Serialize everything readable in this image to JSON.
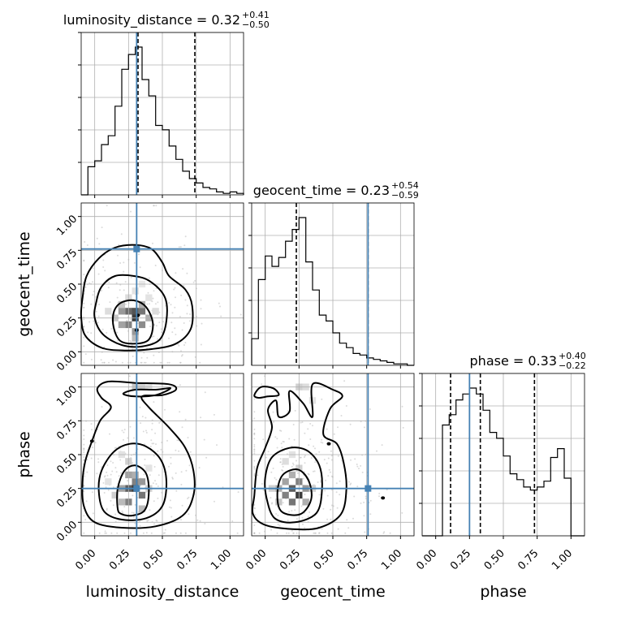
{
  "chart_data": {
    "type": "corner",
    "grid": true,
    "params": [
      "luminosity_distance",
      "geocent_time",
      "phase"
    ],
    "axis_range": [
      -0.1,
      1.1
    ],
    "ticks": [
      0.0,
      0.25,
      0.5,
      0.75,
      1.0
    ],
    "tick_labels": [
      "0.00",
      "0.25",
      "0.50",
      "0.75",
      "1.00"
    ],
    "truths": [
      0.31,
      0.76,
      0.25
    ],
    "truth_color": "#4682b4",
    "titles": [
      {
        "label": "luminosity_distance = 0.32",
        "sup": "+0.41",
        "sub": "−0.50"
      },
      {
        "label": "geocent_time = 0.23",
        "sup": "+0.54",
        "sub": "−0.59"
      },
      {
        "label": "phase = 0.33",
        "sup": "+0.40",
        "sub": "−0.22"
      }
    ],
    "histograms": [
      {
        "param": "luminosity_distance",
        "bin_edges": [
          -0.1,
          -0.05,
          0.0,
          0.05,
          0.1,
          0.15,
          0.2,
          0.25,
          0.3,
          0.35,
          0.4,
          0.45,
          0.5,
          0.55,
          0.6,
          0.65,
          0.7,
          0.75,
          0.8,
          0.85,
          0.9,
          0.95,
          1.0,
          1.05,
          1.1
        ],
        "counts": [
          0,
          0.19,
          0.23,
          0.34,
          0.4,
          0.6,
          0.85,
          0.95,
          1.0,
          0.78,
          0.67,
          0.47,
          0.44,
          0.33,
          0.24,
          0.16,
          0.11,
          0.08,
          0.05,
          0.04,
          0.02,
          0.01,
          0.02,
          0.01
        ],
        "quantiles": [
          0.32,
          0.74
        ],
        "median": 0.32
      },
      {
        "param": "geocent_time",
        "bin_edges": [
          -0.1,
          -0.05,
          0.0,
          0.05,
          0.1,
          0.15,
          0.2,
          0.25,
          0.3,
          0.35,
          0.4,
          0.45,
          0.5,
          0.55,
          0.6,
          0.65,
          0.7,
          0.75,
          0.8,
          0.85,
          0.9,
          0.95,
          1.0,
          1.05,
          1.1
        ],
        "counts": [
          0.18,
          0.58,
          0.74,
          0.67,
          0.73,
          0.84,
          0.92,
          1.0,
          0.7,
          0.51,
          0.34,
          0.3,
          0.22,
          0.15,
          0.12,
          0.08,
          0.07,
          0.05,
          0.04,
          0.03,
          0.02,
          0.01,
          0.01,
          0
        ],
        "quantiles": [
          0.23,
          0.76
        ],
        "median": 0.23
      },
      {
        "param": "phase",
        "bin_edges": [
          -0.1,
          -0.05,
          0.0,
          0.05,
          0.1,
          0.15,
          0.2,
          0.25,
          0.3,
          0.35,
          0.4,
          0.45,
          0.5,
          0.55,
          0.6,
          0.65,
          0.7,
          0.75,
          0.8,
          0.85,
          0.9,
          0.95,
          1.0,
          1.05,
          1.1
        ],
        "counts": [
          0,
          0,
          0,
          0.75,
          0.82,
          0.92,
          0.96,
          1.0,
          0.96,
          0.85,
          0.7,
          0.66,
          0.54,
          0.42,
          0.38,
          0.33,
          0.31,
          0.33,
          0.37,
          0.53,
          0.59,
          0.39,
          0,
          0
        ],
        "quantiles": [
          0.11,
          0.33,
          0.73
        ],
        "median": 0.33
      }
    ],
    "contour_panels": [
      {
        "x_param": "luminosity_distance",
        "y_param": "geocent_time",
        "cores": [
          [
            0.32,
            0.27
          ],
          [
            0.31,
            0.16
          ]
        ],
        "levels": [
          [
            [
              -0.09,
              0.4
            ],
            [
              -0.06,
              0.56
            ],
            [
              0.03,
              0.69
            ],
            [
              0.15,
              0.77
            ],
            [
              0.3,
              0.79
            ],
            [
              0.42,
              0.76
            ],
            [
              0.5,
              0.66
            ],
            [
              0.55,
              0.56
            ],
            [
              0.67,
              0.46
            ],
            [
              0.72,
              0.34
            ],
            [
              0.71,
              0.17
            ],
            [
              0.6,
              0.06
            ],
            [
              0.42,
              0.02
            ],
            [
              0.22,
              0.01
            ],
            [
              0.05,
              0.03
            ],
            [
              -0.07,
              0.12
            ],
            [
              -0.1,
              0.26
            ]
          ],
          [
            [
              0.01,
              0.36
            ],
            [
              0.05,
              0.48
            ],
            [
              0.15,
              0.56
            ],
            [
              0.29,
              0.56
            ],
            [
              0.41,
              0.52
            ],
            [
              0.52,
              0.4
            ],
            [
              0.53,
              0.23
            ],
            [
              0.48,
              0.09
            ],
            [
              0.35,
              0.04
            ],
            [
              0.2,
              0.05
            ],
            [
              0.06,
              0.13
            ],
            [
              0.0,
              0.25
            ]
          ],
          [
            [
              0.14,
              0.29
            ],
            [
              0.19,
              0.36
            ],
            [
              0.29,
              0.38
            ],
            [
              0.38,
              0.33
            ],
            [
              0.43,
              0.21
            ],
            [
              0.4,
              0.09
            ],
            [
              0.3,
              0.06
            ],
            [
              0.19,
              0.08
            ],
            [
              0.14,
              0.18
            ]
          ]
        ],
        "density_cells": [
          [
            0.2,
            0.3,
            0.45
          ],
          [
            0.25,
            0.3,
            0.65
          ],
          [
            0.3,
            0.25,
            0.85
          ],
          [
            0.3,
            0.3,
            0.75
          ],
          [
            0.35,
            0.3,
            0.6
          ],
          [
            0.25,
            0.2,
            0.55
          ],
          [
            0.3,
            0.15,
            0.45
          ],
          [
            0.35,
            0.2,
            0.5
          ],
          [
            0.2,
            0.2,
            0.4
          ],
          [
            0.4,
            0.25,
            0.35
          ],
          [
            0.15,
            0.25,
            0.25
          ],
          [
            0.3,
            0.1,
            0.3
          ],
          [
            0.35,
            0.35,
            0.35
          ],
          [
            0.2,
            0.35,
            0.25
          ],
          [
            0.1,
            0.3,
            0.15
          ],
          [
            0.45,
            0.3,
            0.15
          ],
          [
            0.25,
            0.4,
            0.15
          ],
          [
            0.3,
            0.45,
            0.12
          ],
          [
            0.35,
            0.5,
            0.1
          ],
          [
            0.4,
            0.4,
            0.12
          ]
        ],
        "truth": [
          0.31,
          0.76
        ]
      },
      {
        "x_param": "luminosity_distance",
        "y_param": "phase",
        "cores": [
          [
            -0.02,
            0.6
          ]
        ],
        "levels": [
          [
            [
              -0.09,
              0.3
            ],
            [
              -0.07,
              0.45
            ],
            [
              -0.02,
              0.6
            ],
            [
              0.04,
              0.75
            ],
            [
              0.12,
              0.85
            ],
            [
              0.05,
              0.92
            ],
            [
              0.02,
              0.99
            ],
            [
              0.1,
              1.04
            ],
            [
              0.3,
              1.03
            ],
            [
              0.55,
              1.02
            ],
            [
              0.6,
              0.98
            ],
            [
              0.5,
              0.94
            ],
            [
              0.35,
              0.93
            ],
            [
              0.4,
              0.85
            ],
            [
              0.55,
              0.7
            ],
            [
              0.67,
              0.55
            ],
            [
              0.73,
              0.38
            ],
            [
              0.73,
              0.2
            ],
            [
              0.65,
              0.05
            ],
            [
              0.45,
              -0.03
            ],
            [
              0.2,
              -0.04
            ],
            [
              0.0,
              0.0
            ],
            [
              -0.08,
              0.12
            ]
          ],
          [
            [
              0.03,
              0.23
            ],
            [
              0.05,
              0.38
            ],
            [
              0.14,
              0.52
            ],
            [
              0.26,
              0.58
            ],
            [
              0.38,
              0.56
            ],
            [
              0.49,
              0.46
            ],
            [
              0.53,
              0.3
            ],
            [
              0.5,
              0.12
            ],
            [
              0.38,
              0.03
            ],
            [
              0.2,
              0.02
            ],
            [
              0.07,
              0.08
            ]
          ],
          [
            [
              0.17,
              0.1
            ],
            [
              0.17,
              0.25
            ],
            [
              0.22,
              0.38
            ],
            [
              0.3,
              0.42
            ],
            [
              0.38,
              0.36
            ],
            [
              0.4,
              0.22
            ],
            [
              0.37,
              0.09
            ],
            [
              0.28,
              0.05
            ],
            [
              0.2,
              0.06
            ]
          ],
          [
            [
              0.21,
              0.95
            ],
            [
              0.3,
              0.98
            ],
            [
              0.45,
              0.98
            ],
            [
              0.56,
              0.99
            ],
            [
              0.45,
              0.94
            ],
            [
              0.3,
              0.93
            ]
          ]
        ],
        "density_cells": [
          [
            0.25,
            0.25,
            0.7
          ],
          [
            0.3,
            0.25,
            0.85
          ],
          [
            0.35,
            0.2,
            0.6
          ],
          [
            0.25,
            0.15,
            0.55
          ],
          [
            0.3,
            0.3,
            0.55
          ],
          [
            0.35,
            0.3,
            0.45
          ],
          [
            0.2,
            0.25,
            0.4
          ],
          [
            0.25,
            0.35,
            0.4
          ],
          [
            0.3,
            0.35,
            0.35
          ],
          [
            0.2,
            0.15,
            0.3
          ],
          [
            0.35,
            0.1,
            0.3
          ],
          [
            0.15,
            0.2,
            0.2
          ],
          [
            0.4,
            0.25,
            0.2
          ],
          [
            0.25,
            0.45,
            0.2
          ],
          [
            0.3,
            1.0,
            0.25
          ],
          [
            0.35,
            1.0,
            0.2
          ],
          [
            0.4,
            1.0,
            0.15
          ],
          [
            0.2,
            0.5,
            0.12
          ],
          [
            0.4,
            0.4,
            0.12
          ],
          [
            0.1,
            0.3,
            0.12
          ]
        ],
        "truth": [
          0.31,
          0.25
        ]
      },
      {
        "x_param": "geocent_time",
        "y_param": "phase",
        "cores": [
          [
            0.47,
            0.58
          ],
          [
            0.87,
            0.18
          ]
        ],
        "levels": [
          [
            [
              -0.08,
              0.2
            ],
            [
              -0.06,
              0.4
            ],
            [
              0.0,
              0.55
            ],
            [
              0.05,
              0.7
            ],
            [
              0.02,
              0.83
            ],
            [
              0.08,
              0.9
            ],
            [
              0.1,
              0.78
            ],
            [
              0.18,
              0.82
            ],
            [
              0.18,
              0.97
            ],
            [
              0.28,
              0.88
            ],
            [
              0.35,
              0.78
            ],
            [
              0.35,
              1.02
            ],
            [
              0.5,
              0.98
            ],
            [
              0.57,
              0.93
            ],
            [
              0.48,
              0.84
            ],
            [
              0.43,
              0.65
            ],
            [
              0.53,
              0.58
            ],
            [
              0.58,
              0.44
            ],
            [
              0.6,
              0.25
            ],
            [
              0.56,
              0.06
            ],
            [
              0.4,
              -0.04
            ],
            [
              0.2,
              -0.05
            ],
            [
              0.0,
              -0.02
            ],
            [
              -0.09,
              0.06
            ]
          ],
          [
            [
              0.01,
              0.18
            ],
            [
              0.0,
              0.33
            ],
            [
              0.05,
              0.48
            ],
            [
              0.18,
              0.55
            ],
            [
              0.31,
              0.53
            ],
            [
              0.4,
              0.42
            ],
            [
              0.42,
              0.25
            ],
            [
              0.38,
              0.07
            ],
            [
              0.22,
              0.0
            ],
            [
              0.07,
              0.03
            ]
          ],
          [
            [
              0.12,
              0.08
            ],
            [
              0.09,
              0.22
            ],
            [
              0.13,
              0.35
            ],
            [
              0.24,
              0.39
            ],
            [
              0.32,
              0.31
            ],
            [
              0.34,
              0.17
            ],
            [
              0.26,
              0.06
            ]
          ],
          [
            [
              -0.08,
              0.94
            ],
            [
              -0.03,
              1.0
            ],
            [
              0.06,
              0.99
            ],
            [
              0.1,
              0.94
            ],
            [
              0.02,
              0.93
            ],
            [
              -0.05,
              0.92
            ]
          ]
        ],
        "density_cells": [
          [
            0.2,
            0.25,
            0.7
          ],
          [
            0.25,
            0.2,
            0.85
          ],
          [
            0.15,
            0.2,
            0.55
          ],
          [
            0.2,
            0.15,
            0.6
          ],
          [
            0.25,
            0.3,
            0.55
          ],
          [
            0.15,
            0.3,
            0.4
          ],
          [
            0.3,
            0.25,
            0.45
          ],
          [
            0.1,
            0.25,
            0.35
          ],
          [
            0.2,
            0.35,
            0.35
          ],
          [
            0.3,
            0.15,
            0.35
          ],
          [
            0.1,
            0.15,
            0.25
          ],
          [
            0.05,
            0.25,
            0.2
          ],
          [
            0.25,
            0.4,
            0.2
          ],
          [
            0.35,
            0.25,
            0.2
          ],
          [
            0.15,
            0.45,
            0.15
          ],
          [
            0.2,
            0.5,
            0.12
          ],
          [
            0.25,
            1.0,
            0.2
          ],
          [
            0.3,
            1.0,
            0.15
          ],
          [
            0.35,
            0.9,
            0.12
          ]
        ],
        "truth": [
          0.76,
          0.25
        ]
      }
    ]
  }
}
